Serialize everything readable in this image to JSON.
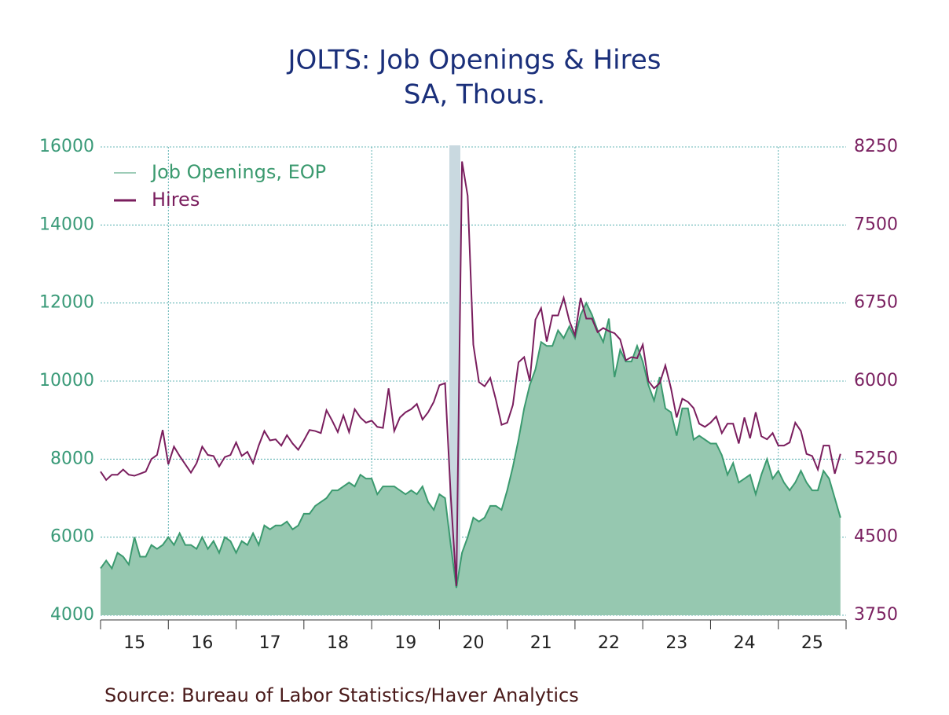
{
  "chart_data": {
    "type": "area",
    "title": "JOLTS: Job Openings & Hires",
    "subtitle": "SA, Thous.",
    "source": "Source:  Bureau of Labor Statistics/Haver Analytics",
    "categories": [
      null,
      null,
      null,
      null,
      null,
      null,
      "15",
      null,
      null,
      null,
      null,
      null,
      null,
      null,
      null,
      null,
      null,
      null,
      "16",
      null,
      null,
      null,
      null,
      null,
      null,
      null,
      null,
      null,
      null,
      null,
      "17",
      null,
      null,
      null,
      null,
      null,
      null,
      null,
      null,
      null,
      null,
      null,
      "18",
      null,
      null,
      null,
      null,
      null,
      null,
      null,
      null,
      null,
      null,
      null,
      "19",
      null,
      null,
      null,
      null,
      null,
      null,
      null,
      null,
      null,
      null,
      null,
      "20",
      null,
      null,
      null,
      null,
      null,
      null,
      null,
      null,
      null,
      null,
      null,
      "21",
      null,
      null,
      null,
      null,
      null,
      null,
      null,
      null,
      null,
      null,
      null,
      "22",
      null,
      null,
      null,
      null,
      null,
      null,
      null,
      null,
      null,
      null,
      null,
      "23",
      null,
      null,
      null,
      null,
      null,
      null,
      null,
      null,
      null,
      null,
      null,
      "24",
      null,
      null,
      null,
      null,
      null,
      null,
      null,
      null,
      null,
      null,
      null,
      "25",
      null,
      null,
      null,
      null,
      null
    ],
    "series": [
      {
        "name": "Job Openings, EOP",
        "type": "area",
        "color": "#3b9a6f",
        "fill": "#96c8b0",
        "axis": "y",
        "values": [
          5200,
          5400,
          5200,
          5600,
          5500,
          5300,
          6000,
          5500,
          5500,
          5800,
          5700,
          5800,
          6000,
          5800,
          6100,
          5800,
          5800,
          5700,
          6000,
          5700,
          5900,
          5600,
          6000,
          5900,
          5600,
          5900,
          5800,
          6100,
          5800,
          6300,
          6200,
          6300,
          6300,
          6400,
          6200,
          6300,
          6600,
          6600,
          6800,
          6900,
          7000,
          7200,
          7200,
          7300,
          7400,
          7300,
          7600,
          7500,
          7500,
          7100,
          7300,
          7300,
          7300,
          7200,
          7100,
          7200,
          7100,
          7300,
          6900,
          6700,
          7100,
          7000,
          5800,
          4700,
          5600,
          6000,
          6500,
          6400,
          6500,
          6800,
          6800,
          6700,
          7200,
          7800,
          8500,
          9300,
          9900,
          10300,
          11000,
          10900,
          10900,
          11300,
          11100,
          11400,
          11100,
          11700,
          12000,
          11700,
          11300,
          11000,
          11600,
          10100,
          10800,
          10500,
          10500,
          10900,
          10500,
          9900,
          9500,
          10100,
          9300,
          9200,
          8600,
          9300,
          9300,
          8500,
          8600,
          8500,
          8400,
          8400,
          8100,
          7600,
          7900,
          7400,
          7500,
          7600,
          7100,
          7600,
          8000,
          7500,
          7700,
          7400,
          7200,
          7400,
          7700,
          7400,
          7200,
          7200,
          7700,
          7500,
          7000,
          6500
        ]
      },
      {
        "name": "Hires",
        "type": "line",
        "color": "#7a1e5e",
        "axis": "y2",
        "values": [
          5130,
          5050,
          5100,
          5100,
          5150,
          5100,
          5090,
          5110,
          5130,
          5250,
          5290,
          5530,
          5200,
          5370,
          5280,
          5200,
          5120,
          5210,
          5370,
          5290,
          5280,
          5180,
          5270,
          5290,
          5410,
          5280,
          5320,
          5210,
          5380,
          5520,
          5430,
          5440,
          5380,
          5480,
          5400,
          5340,
          5430,
          5530,
          5520,
          5500,
          5720,
          5620,
          5510,
          5670,
          5510,
          5730,
          5650,
          5600,
          5620,
          5560,
          5550,
          5930,
          5520,
          5650,
          5700,
          5730,
          5780,
          5630,
          5700,
          5800,
          5960,
          5980,
          4900,
          4030,
          8110,
          7780,
          6350,
          5990,
          5950,
          6030,
          5820,
          5580,
          5600,
          5770,
          6180,
          6230,
          6000,
          6590,
          6700,
          6380,
          6630,
          6630,
          6800,
          6580,
          6440,
          6800,
          6600,
          6600,
          6470,
          6510,
          6480,
          6460,
          6400,
          6200,
          6230,
          6220,
          6350,
          6000,
          5930,
          5980,
          6150,
          5930,
          5650,
          5830,
          5800,
          5740,
          5590,
          5560,
          5600,
          5660,
          5500,
          5590,
          5590,
          5400,
          5650,
          5450,
          5700,
          5470,
          5440,
          5500,
          5380,
          5380,
          5410,
          5600,
          5520,
          5300,
          5280,
          5150,
          5380,
          5380,
          5110,
          5300
        ]
      }
    ],
    "ylim": [
      4000,
      16000
    ],
    "yticks": [
      4000,
      6000,
      8000,
      10000,
      12000,
      14000,
      16000
    ],
    "y2lim": [
      3750,
      8250
    ],
    "y2ticks": [
      3750,
      4500,
      5250,
      6000,
      6750,
      7500,
      8250
    ],
    "grid": true,
    "legend": "upper left"
  }
}
